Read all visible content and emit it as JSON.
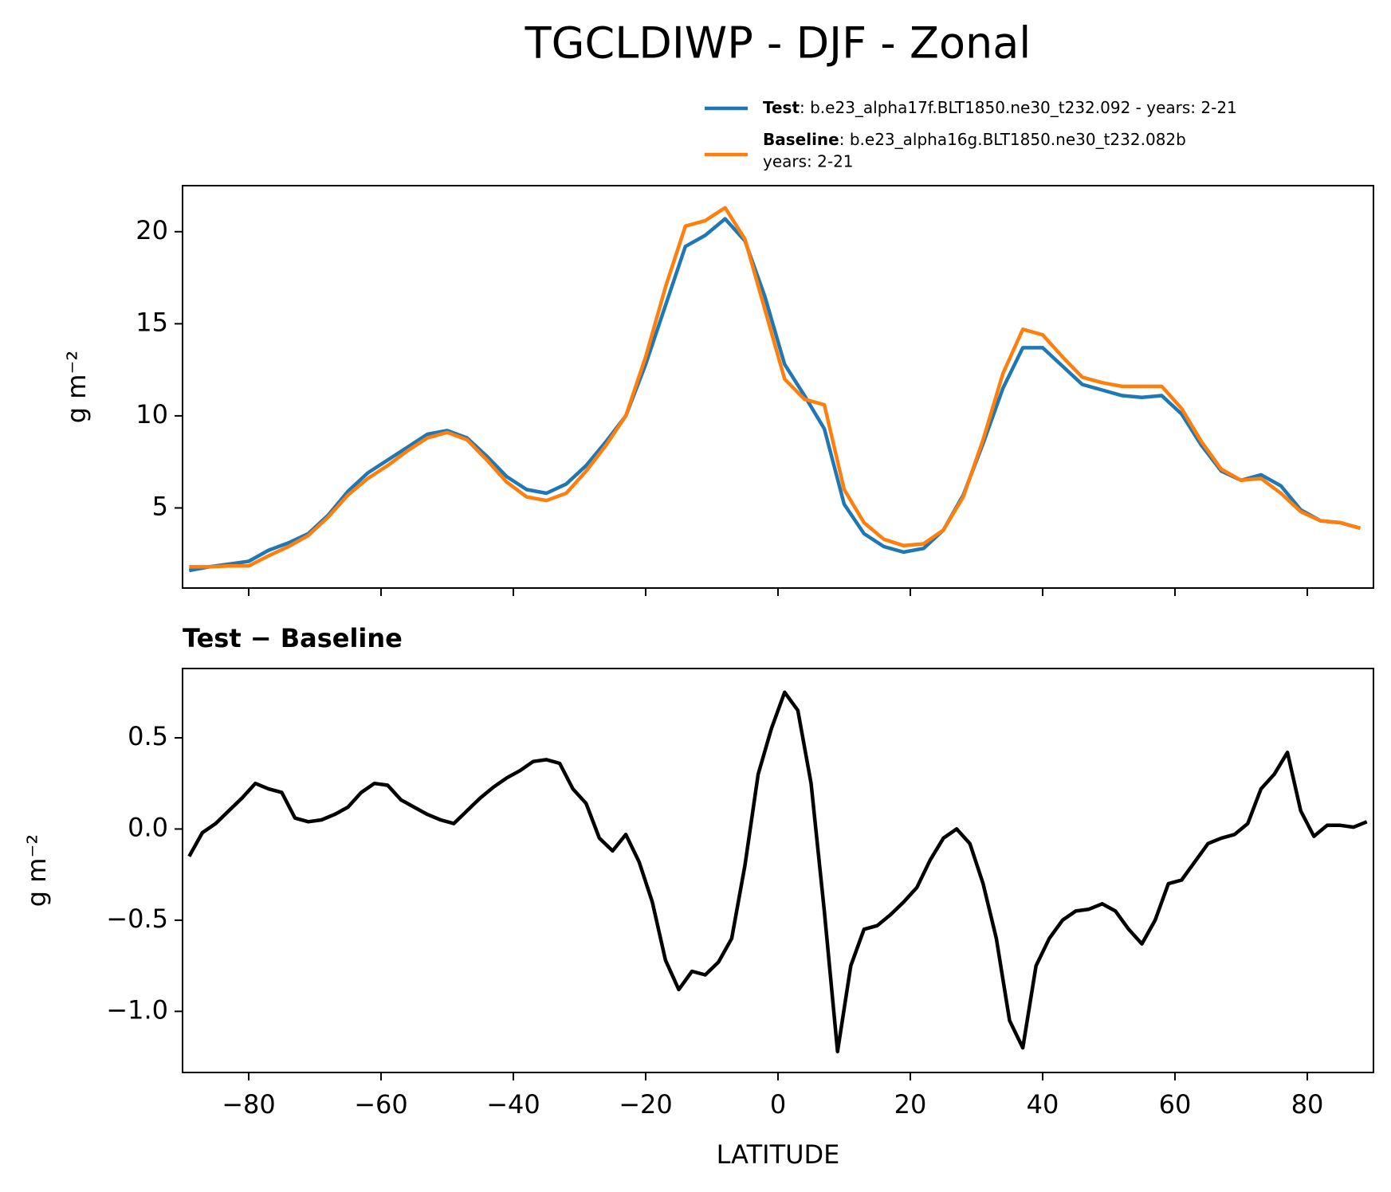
{
  "title": "TGCLDIWP - DJF - Zonal",
  "chart_data": [
    {
      "type": "line",
      "ylabel": "g m⁻²",
      "show_xtick_labels": false,
      "x": [
        -89,
        -86,
        -83,
        -80,
        -77,
        -74,
        -71,
        -68,
        -65,
        -62,
        -59,
        -56,
        -53,
        -50,
        -47,
        -44,
        -41,
        -38,
        -35,
        -32,
        -29,
        -26,
        -23,
        -20,
        -17,
        -14,
        -11,
        -8,
        -5,
        -2,
        1,
        4,
        7,
        10,
        13,
        16,
        19,
        22,
        25,
        28,
        31,
        34,
        37,
        40,
        43,
        46,
        49,
        52,
        55,
        58,
        61,
        64,
        67,
        70,
        73,
        76,
        79,
        82,
        85,
        88
      ],
      "series": [
        {
          "name": "Test",
          "label": ": b.e23_alpha17f.BLT1850.ne30_t232.092 - years: 2-21",
          "color": "#1f77b4",
          "values": [
            1.6,
            1.8,
            1.95,
            2.1,
            2.7,
            3.1,
            3.6,
            4.6,
            5.9,
            6.9,
            7.6,
            8.3,
            9.0,
            9.2,
            8.8,
            7.8,
            6.7,
            6.0,
            5.8,
            6.3,
            7.3,
            8.6,
            10.0,
            12.8,
            16.0,
            19.2,
            19.8,
            20.7,
            19.5,
            16.5,
            12.8,
            11.1,
            9.3,
            5.2,
            3.6,
            2.9,
            2.6,
            2.8,
            3.8,
            5.7,
            8.5,
            11.5,
            13.7,
            13.7,
            12.7,
            11.7,
            11.4,
            11.1,
            11.0,
            11.1,
            10.1,
            8.4,
            7.0,
            6.5,
            6.8,
            6.2,
            4.9,
            4.3,
            4.2,
            3.9
          ]
        },
        {
          "name": "Baseline",
          "label_lines": [
            ": b.e23_alpha16g.BLT1850.ne30_t232.082b",
            "years: 2-21"
          ],
          "color": "#ff7f0e",
          "values": [
            1.8,
            1.8,
            1.85,
            1.85,
            2.4,
            2.9,
            3.5,
            4.5,
            5.7,
            6.6,
            7.3,
            8.1,
            8.8,
            9.1,
            8.7,
            7.6,
            6.4,
            5.6,
            5.4,
            5.8,
            7.0,
            8.4,
            10.0,
            13.2,
            17.0,
            20.3,
            20.6,
            21.3,
            19.6,
            15.8,
            12.0,
            10.9,
            10.6,
            6.0,
            4.2,
            3.3,
            2.95,
            3.05,
            3.8,
            5.6,
            8.7,
            12.3,
            14.7,
            14.4,
            13.2,
            12.1,
            11.8,
            11.6,
            11.6,
            11.6,
            10.4,
            8.6,
            7.1,
            6.5,
            6.6,
            5.8,
            4.8,
            4.3,
            4.2,
            3.9
          ]
        }
      ],
      "xlim": [
        -90,
        90
      ],
      "xticks": [
        {
          "value": -80,
          "label": "−80"
        },
        {
          "value": -60,
          "label": "−60"
        },
        {
          "value": -40,
          "label": "−40"
        },
        {
          "value": -20,
          "label": "−20"
        },
        0,
        20,
        40,
        60,
        80
      ],
      "ylim": [
        0.65,
        22.5
      ],
      "yticks": [
        5,
        10,
        15,
        20
      ]
    },
    {
      "type": "line",
      "title": "Test − Baseline",
      "ylabel": "g m⁻²",
      "xlabel": "LATITUDE",
      "show_xtick_labels": true,
      "x": [
        -89,
        -87,
        -85,
        -83,
        -81,
        -79,
        -77,
        -75,
        -73,
        -71,
        -69,
        -67,
        -65,
        -63,
        -61,
        -59,
        -57,
        -55,
        -53,
        -51,
        -49,
        -47,
        -45,
        -43,
        -41,
        -39,
        -37,
        -35,
        -33,
        -31,
        -29,
        -27,
        -25,
        -23,
        -21,
        -19,
        -17,
        -15,
        -13,
        -11,
        -9,
        -7,
        -5,
        -3,
        -1,
        1,
        3,
        5,
        7,
        9,
        11,
        13,
        15,
        17,
        19,
        21,
        23,
        25,
        27,
        29,
        31,
        33,
        35,
        37,
        39,
        41,
        43,
        45,
        47,
        49,
        51,
        53,
        55,
        57,
        59,
        61,
        63,
        65,
        67,
        69,
        71,
        73,
        75,
        77,
        79,
        81,
        83,
        85,
        87,
        89
      ],
      "series": [
        {
          "color": "#000000",
          "values": [
            -0.15,
            -0.02,
            0.03,
            0.1,
            0.17,
            0.25,
            0.22,
            0.2,
            0.06,
            0.04,
            0.05,
            0.08,
            0.12,
            0.2,
            0.25,
            0.24,
            0.16,
            0.12,
            0.08,
            0.05,
            0.03,
            0.1,
            0.17,
            0.23,
            0.28,
            0.32,
            0.37,
            0.38,
            0.36,
            0.22,
            0.14,
            -0.05,
            -0.12,
            -0.03,
            -0.18,
            -0.4,
            -0.72,
            -0.88,
            -0.78,
            -0.8,
            -0.73,
            -0.6,
            -0.2,
            0.3,
            0.55,
            0.75,
            0.65,
            0.25,
            -0.45,
            -1.22,
            -0.75,
            -0.55,
            -0.53,
            -0.47,
            -0.4,
            -0.32,
            -0.17,
            -0.05,
            0.0,
            -0.08,
            -0.3,
            -0.6,
            -1.05,
            -1.2,
            -0.75,
            -0.6,
            -0.5,
            -0.45,
            -0.44,
            -0.41,
            -0.45,
            -0.55,
            -0.63,
            -0.5,
            -0.3,
            -0.28,
            -0.18,
            -0.08,
            -0.05,
            -0.03,
            0.03,
            0.22,
            0.3,
            0.42,
            0.1,
            -0.04,
            0.02,
            0.02,
            0.01,
            0.04
          ]
        }
      ],
      "xlim": [
        -90,
        90
      ],
      "xticks": [
        {
          "value": -80,
          "label": "−80"
        },
        {
          "value": -60,
          "label": "−60"
        },
        {
          "value": -40,
          "label": "−40"
        },
        {
          "value": -20,
          "label": "−20"
        },
        0,
        20,
        40,
        60,
        80
      ],
      "ylim": [
        -1.335,
        0.88
      ],
      "yticks": [
        {
          "value": -1.0,
          "label": "−1.0"
        },
        {
          "value": -0.5,
          "label": "−0.5"
        },
        {
          "value": 0,
          "label": "0.0"
        },
        0.5
      ]
    }
  ]
}
